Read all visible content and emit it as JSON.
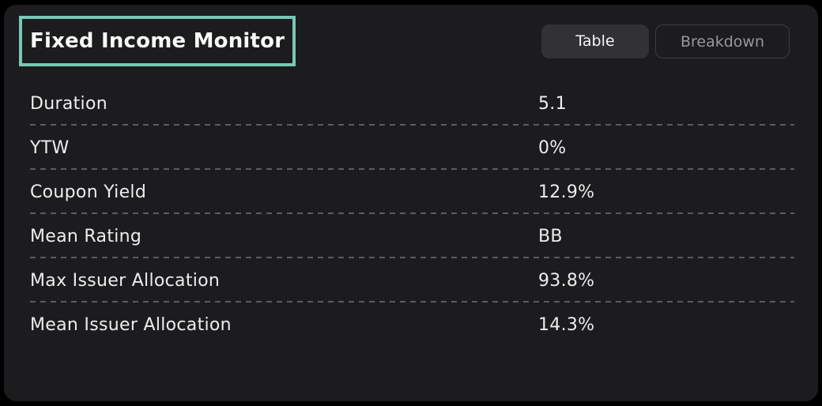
{
  "header": {
    "title": "Fixed Income Monitor",
    "title_highlight_color": "#79c7b7",
    "tabs": [
      {
        "label": "Table",
        "active": true
      },
      {
        "label": "Breakdown",
        "active": false
      }
    ]
  },
  "table": {
    "rows": [
      {
        "label": "Duration",
        "value": "5.1"
      },
      {
        "label": "YTW",
        "value": "0%"
      },
      {
        "label": "Coupon Yield",
        "value": "12.9%"
      },
      {
        "label": "Mean Rating",
        "value": "BB"
      },
      {
        "label": "Max Issuer Allocation",
        "value": "93.8%"
      },
      {
        "label": "Mean Issuer Allocation",
        "value": "14.3%"
      }
    ]
  },
  "colors": {
    "page_background": "#000000",
    "panel_background": "#1c1c1e",
    "highlight": "#79c7b7",
    "active_tab_background": "#323236",
    "inactive_tab_border": "#3e3e42",
    "divider": "#5c5c5e",
    "text": "#ededee"
  }
}
